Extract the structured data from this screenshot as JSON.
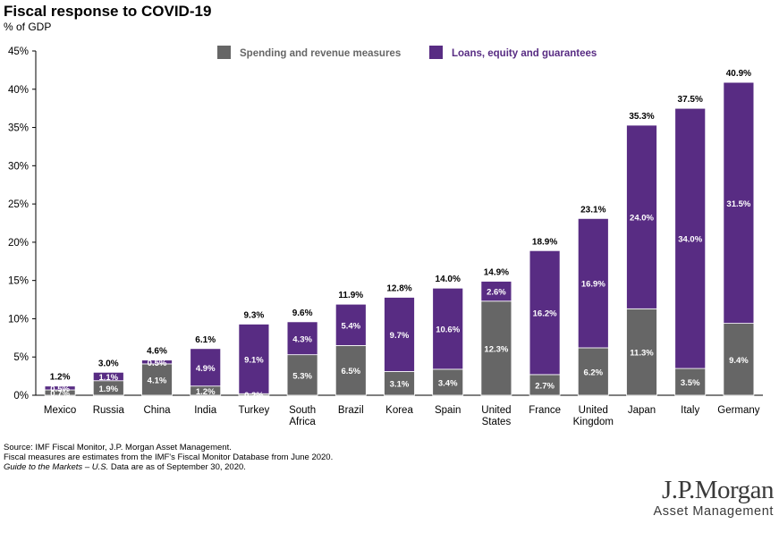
{
  "title": "Fiscal response to COVID-19",
  "subtitle": "% of GDP",
  "colors": {
    "spending": "#666666",
    "loans": "#582C83"
  },
  "chart_data": {
    "type": "bar",
    "stacked": true,
    "unit": "%",
    "ylim": [
      0,
      45
    ],
    "yticks": [
      0,
      5,
      10,
      15,
      20,
      25,
      30,
      35,
      40,
      45
    ],
    "ytick_labels": [
      "0%",
      "5%",
      "10%",
      "15%",
      "20%",
      "25%",
      "30%",
      "35%",
      "40%",
      "45%"
    ],
    "legend_position": "top-center",
    "grid": false,
    "categories": [
      [
        "Mexico"
      ],
      [
        "Russia"
      ],
      [
        "China"
      ],
      [
        "India"
      ],
      [
        "Turkey"
      ],
      [
        "South",
        "Africa"
      ],
      [
        "Brazil"
      ],
      [
        "Korea"
      ],
      [
        "Spain"
      ],
      [
        "United",
        "States"
      ],
      [
        "France"
      ],
      [
        "United",
        "Kingdom"
      ],
      [
        "Japan"
      ],
      [
        "Italy"
      ],
      [
        "Germany"
      ]
    ],
    "series": [
      {
        "name": "Spending and revenue measures",
        "values": [
          0.7,
          1.9,
          4.1,
          1.2,
          0.2,
          5.3,
          6.5,
          3.1,
          3.4,
          12.3,
          2.7,
          6.2,
          11.3,
          3.5,
          9.4
        ],
        "labels": [
          "0.7%",
          "1.9%",
          "4.1%",
          "1.2%",
          "0.2%",
          "5.3%",
          "6.5%",
          "3.1%",
          "3.4%",
          "12.3%",
          "2.7%",
          "6.2%",
          "11.3%",
          "3.5%",
          "9.4%"
        ]
      },
      {
        "name": "Loans, equity and guarantees",
        "values": [
          0.5,
          1.1,
          0.5,
          4.9,
          9.1,
          4.3,
          5.4,
          9.7,
          10.6,
          2.6,
          16.2,
          16.9,
          24.0,
          34.0,
          31.5
        ],
        "labels": [
          "0.5%",
          "1.1%",
          "0.5%",
          "4.9%",
          "9.1%",
          "4.3%",
          "5.4%",
          "9.7%",
          "10.6%",
          "2.6%",
          "16.2%",
          "16.9%",
          "24.0%",
          "34.0%",
          "31.5%"
        ]
      }
    ],
    "totals": [
      1.2,
      3.0,
      4.6,
      6.1,
      9.3,
      9.6,
      11.9,
      12.8,
      14.0,
      14.9,
      18.9,
      23.1,
      35.3,
      37.5,
      40.9
    ],
    "total_labels": [
      "1.2%",
      "3.0%",
      "4.6%",
      "6.1%",
      "9.3%",
      "9.6%",
      "11.9%",
      "12.8%",
      "14.0%",
      "14.9%",
      "18.9%",
      "23.1%",
      "35.3%",
      "37.5%",
      "40.9%"
    ]
  },
  "notes": {
    "source": "Source: IMF Fiscal Monitor, J.P. Morgan Asset Management.",
    "line2": "Fiscal measures are estimates from the IMF's Fiscal Monitor Database from June 2020.",
    "line3_italic": "Guide to the Markets – U.S.",
    "line3_rest": " Data are as of September 30, 2020."
  },
  "logo": {
    "main": "J.P.Morgan",
    "sub": "Asset Management"
  }
}
